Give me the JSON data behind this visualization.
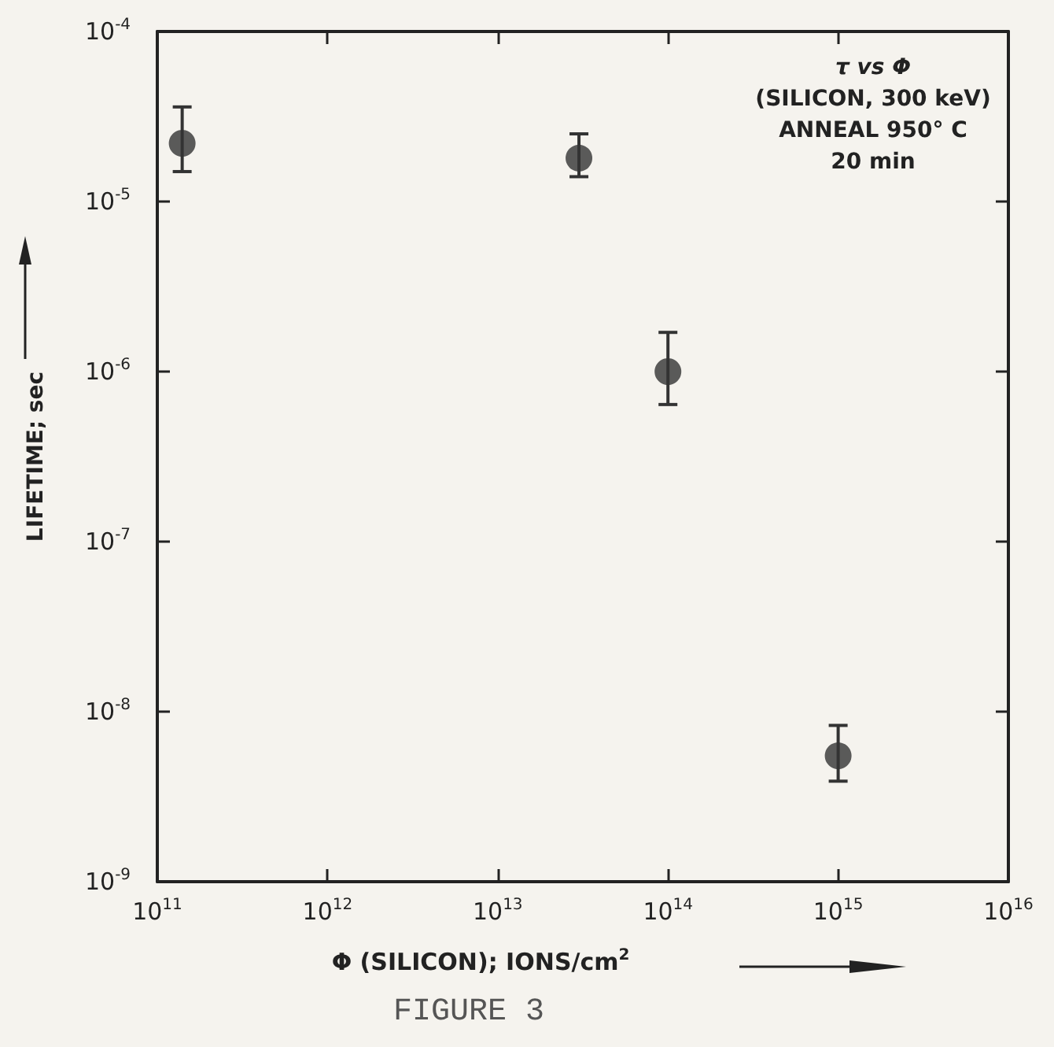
{
  "chart_data": {
    "type": "scatter",
    "title": "FIGURE 3",
    "xlabel": "Φ (SILICON); IONS/cm$^{2}$",
    "ylabel": "LIFETIME; sec",
    "annotations": [
      "τ vs Φ",
      "(SILICON, 300 keV)",
      "ANNEAL 950° C",
      "20 min"
    ],
    "x": [
      140000000000.0,
      30000000000000.0,
      100000000000000.0,
      1000000000000000.0
    ],
    "values": [
      2.2e-05,
      1.8e-05,
      1e-06,
      5.5e-09
    ],
    "errors": [
      [
        1.5e-05,
        3.6e-05
      ],
      [
        1.4e-05,
        2.5e-05
      ],
      [
        6.4e-07,
        1.7e-06
      ],
      [
        3.9e-09,
        8.3e-09
      ]
    ],
    "color": "#333333",
    "marker": "circle",
    "log": "xy",
    "grid": false,
    "xlim": [
      100000000000.0,
      1e+16
    ],
    "xticks": [
      {
        "value": 100000000000.0,
        "label": "10$^{11}$"
      },
      {
        "value": 1000000000000.0,
        "label": "10$^{12}$"
      },
      {
        "value": 10000000000000.0,
        "label": "10$^{13}$"
      },
      {
        "value": 100000000000000.0,
        "label": "10$^{14}$"
      },
      {
        "value": 1000000000000000.0,
        "label": "10$^{15}$"
      },
      {
        "value": 1e+16,
        "label": "10$^{16}$"
      }
    ],
    "ylim": [
      1e-09,
      0.0001
    ],
    "yticks": [
      {
        "value": 1e-09,
        "label": "10$^{-9}$"
      },
      {
        "value": 1e-08,
        "label": "10$^{-8}$"
      },
      {
        "value": 1e-07,
        "label": "10$^{-7}$"
      },
      {
        "value": 1e-06,
        "label": "10$^{-6}$"
      },
      {
        "value": 1e-05,
        "label": "10$^{-5}$"
      },
      {
        "value": 0.0001,
        "label": "10$^{-4}$"
      }
    ]
  }
}
